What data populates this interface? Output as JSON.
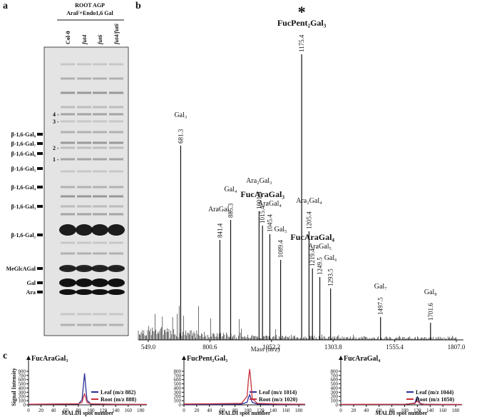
{
  "panel_a": {
    "letter": "a",
    "title": "ROOT AGP",
    "subtitle": "AraF+Endo1,6 Gal",
    "lanes": [
      "Col-0",
      "fut4",
      "fut6",
      "fut4/fut6"
    ],
    "standards": [
      "β-1,6-Gal₈",
      "β-1,6-Gal₇",
      "β-1,6-Gal₆",
      "β-1,6-Gal₅",
      "β-1,6-Gal₄",
      "β-1,6-Gal₃",
      "β-1,6-Gal₂",
      "MeGlcAGal",
      "Gal",
      "Ara"
    ],
    "spots": [
      "4 -",
      "3 -",
      "2 -",
      "1 -"
    ]
  },
  "chart_data": [
    {
      "type": "spectrum",
      "letter": "b",
      "star": "*",
      "xlabel": "Mass (m/z)",
      "xlim": [
        549,
        1807
      ],
      "xticks": [
        {
          "value": 549,
          "label": "549.0"
        },
        800.6,
        1052.2,
        1303.8,
        1555.4,
        {
          "value": 1807,
          "label": "1807.0"
        }
      ],
      "peak_names": [
        "Gal₃",
        "AraGal₃",
        "Gal₄",
        "Ara₂Gal₃",
        "FucAraGal₃",
        "AraGal₄",
        "Gal₅",
        "FucPent₂Gal₃",
        "Ara₂Gal₄",
        "FucAraGal₄",
        "AraGal₅",
        "Gal₆",
        "Gal₇",
        "Gal₈"
      ],
      "x": [
        681.3,
        841.4,
        885.3,
        1001.4,
        1015.4,
        1045.4,
        1089.4,
        1175.4,
        1205.4,
        1219.4,
        1249.5,
        1293.5,
        1497.5,
        1701.6
      ],
      "values": [
        68,
        35,
        42,
        45,
        40,
        37,
        28,
        100,
        38,
        25,
        22,
        18,
        8,
        6
      ]
    },
    {
      "type": "line",
      "letter": "c",
      "title": "FucAraGal₃",
      "ylabel": "Signal Intensity",
      "xlabel": "MALDI spot number",
      "x": [
        0,
        40,
        80,
        86,
        88,
        90,
        92,
        94,
        100,
        140,
        190
      ],
      "series": [
        {
          "name": "Leaf (m/z 882)",
          "color": "#2b2f96",
          "values": [
            10,
            15,
            20,
            120,
            450,
            750,
            400,
            110,
            20,
            10,
            8
          ]
        },
        {
          "name": "Root (m/z 888)",
          "color": "#c8303c",
          "values": [
            15,
            20,
            25,
            60,
            180,
            260,
            170,
            60,
            25,
            15,
            10
          ]
        }
      ],
      "xlim": [
        0,
        190
      ],
      "ylim": [
        0,
        850
      ],
      "xticks": [
        0,
        20,
        40,
        60,
        80,
        100,
        120,
        140,
        160,
        180
      ],
      "yticks": [
        0,
        100,
        200,
        300,
        400,
        500,
        600,
        700,
        800
      ]
    },
    {
      "type": "line",
      "title": "FucPent₂Gal₃",
      "xlabel": "MALDI spot number",
      "x": [
        0,
        40,
        90,
        99,
        101,
        103,
        105,
        107,
        115,
        150,
        190
      ],
      "series": [
        {
          "name": "Leaf (m/z 1014)",
          "color": "#2b2f96",
          "values": [
            8,
            12,
            20,
            60,
            170,
            240,
            160,
            60,
            20,
            10,
            8
          ]
        },
        {
          "name": "Root (m/z 1020)",
          "color": "#c8303c",
          "values": [
            20,
            25,
            35,
            200,
            600,
            850,
            550,
            150,
            35,
            20,
            15
          ]
        }
      ],
      "xlim": [
        0,
        190
      ],
      "ylim": [
        0,
        850
      ],
      "xticks": [
        0,
        20,
        40,
        60,
        80,
        100,
        120,
        140,
        160,
        180
      ],
      "yticks": [
        0,
        100,
        200,
        300,
        400,
        500,
        600,
        700,
        800
      ]
    },
    {
      "type": "line",
      "title": "FucAraGal₄",
      "xlabel": "MALDI spot number",
      "x": [
        0,
        40,
        100,
        116,
        118,
        120,
        122,
        124,
        130,
        160,
        190
      ],
      "series": [
        {
          "name": "Leaf (m/z 1044)",
          "color": "#2b2f96",
          "values": [
            8,
            10,
            12,
            40,
            130,
            190,
            120,
            35,
            12,
            8,
            6
          ]
        },
        {
          "name": "Root (m/z 1050)",
          "color": "#c8303c",
          "values": [
            10,
            12,
            15,
            30,
            70,
            90,
            65,
            28,
            15,
            10,
            8
          ]
        }
      ],
      "xlim": [
        0,
        190
      ],
      "ylim": [
        0,
        850
      ],
      "xticks": [
        0,
        20,
        40,
        60,
        80,
        100,
        120,
        140,
        160,
        180
      ],
      "yticks": [
        0,
        100,
        200,
        300,
        400,
        500,
        600,
        700,
        800
      ]
    }
  ]
}
